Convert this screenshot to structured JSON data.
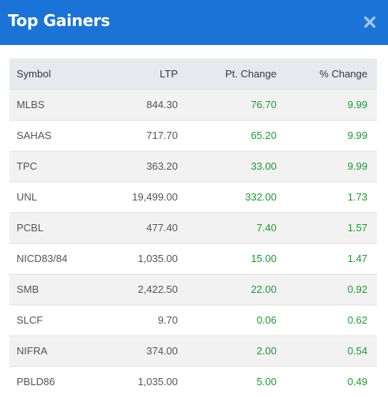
{
  "header": {
    "title": "Top Gainers"
  },
  "colors": {
    "header_bg": "#1a73d6",
    "gain_green": "#1e9a2e",
    "close_icon": "#a9c7ee"
  },
  "table": {
    "columns": [
      "Symbol",
      "LTP",
      "Pt. Change",
      "% Change"
    ],
    "rows": [
      [
        "MLBS",
        "844.30",
        "76.70",
        "9.99"
      ],
      [
        "SAHAS",
        "717.70",
        "65.20",
        "9.99"
      ],
      [
        "TPC",
        "363.20",
        "33.00",
        "9.99"
      ],
      [
        "UNL",
        "19,499.00",
        "332.00",
        "1.73"
      ],
      [
        "PCBL",
        "477.40",
        "7.40",
        "1.57"
      ],
      [
        "NICD83/84",
        "1,035.00",
        "15.00",
        "1.47"
      ],
      [
        "SMB",
        "2,422.50",
        "22.00",
        "0.92"
      ],
      [
        "SLCF",
        "9.70",
        "0.06",
        "0.62"
      ],
      [
        "NIFRA",
        "374.00",
        "2.00",
        "0.54"
      ],
      [
        "PBLD86",
        "1,035.00",
        "5.00",
        "0.49"
      ]
    ]
  }
}
